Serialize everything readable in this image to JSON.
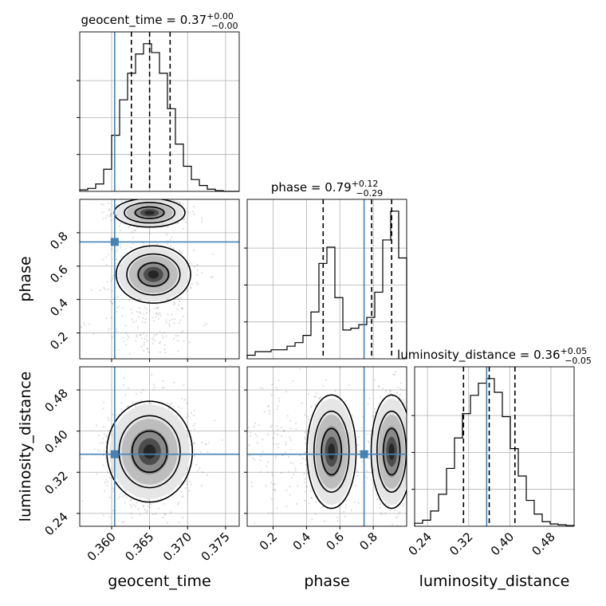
{
  "chart_data": {
    "type": "corner",
    "parameters": [
      "geocent_time",
      "phase",
      "luminosity_distance"
    ],
    "titles": [
      {
        "param": "geocent_time",
        "text": "geocent_time = 0.37",
        "plus": "+0.00",
        "minus": "−0.00"
      },
      {
        "param": "phase",
        "text": "phase = 0.79",
        "plus": "+0.12",
        "minus": "−0.29"
      },
      {
        "param": "luminosity_distance",
        "text": "luminosity_distance = 0.36",
        "plus": "+0.05",
        "minus": "−0.05"
      }
    ],
    "axis_labels": {
      "geocent_time": "geocent_time",
      "phase": "phase",
      "luminosity_distance": "luminosity_distance"
    },
    "ranges": {
      "geocent_time": [
        0.3558,
        0.3768
      ],
      "phase": [
        0.045,
        1.0
      ],
      "luminosity_distance": [
        0.215,
        0.525
      ]
    },
    "ticks": {
      "geocent_time": {
        "values": [
          0.36,
          0.365,
          0.37,
          0.375
        ],
        "labels": [
          "0.360",
          "0.365",
          "0.370",
          "0.375"
        ]
      },
      "phase": {
        "values": [
          0.2,
          0.4,
          0.6,
          0.8
        ],
        "labels": [
          "0.2",
          "0.4",
          "0.6",
          "0.8"
        ]
      },
      "luminosity_distance": {
        "values": [
          0.24,
          0.32,
          0.4,
          0.48
        ],
        "labels": [
          "0.24",
          "0.32",
          "0.40",
          "0.48"
        ]
      }
    },
    "truths": {
      "geocent_time": 0.3604,
      "phase": 0.745,
      "luminosity_distance": 0.355
    },
    "quantiles": {
      "geocent_time": [
        0.3626,
        0.365,
        0.3677
      ],
      "phase": [
        0.5,
        0.79,
        0.91
      ],
      "luminosity_distance": [
        0.31,
        0.36,
        0.41
      ]
    },
    "histograms": {
      "geocent_time": [
        0.01,
        0.02,
        0.05,
        0.15,
        0.38,
        0.62,
        0.8,
        0.93,
        1.0,
        0.94,
        0.8,
        0.56,
        0.32,
        0.17,
        0.08,
        0.04,
        0.015,
        0.005,
        0.0,
        0.0
      ],
      "phase": [
        0.02,
        0.04,
        0.04,
        0.05,
        0.05,
        0.07,
        0.09,
        0.13,
        0.26,
        0.53,
        0.62,
        0.34,
        0.16,
        0.17,
        0.19,
        0.23,
        0.37,
        0.66,
        0.82,
        0.56
      ],
      "luminosity_distance": [
        0.02,
        0.04,
        0.1,
        0.21,
        0.38,
        0.58,
        0.74,
        0.86,
        0.94,
        0.97,
        0.88,
        0.72,
        0.51,
        0.33,
        0.17,
        0.08,
        0.03,
        0.015,
        0.01,
        0.005
      ]
    },
    "grid": true,
    "truth_color": "#4682b4"
  }
}
